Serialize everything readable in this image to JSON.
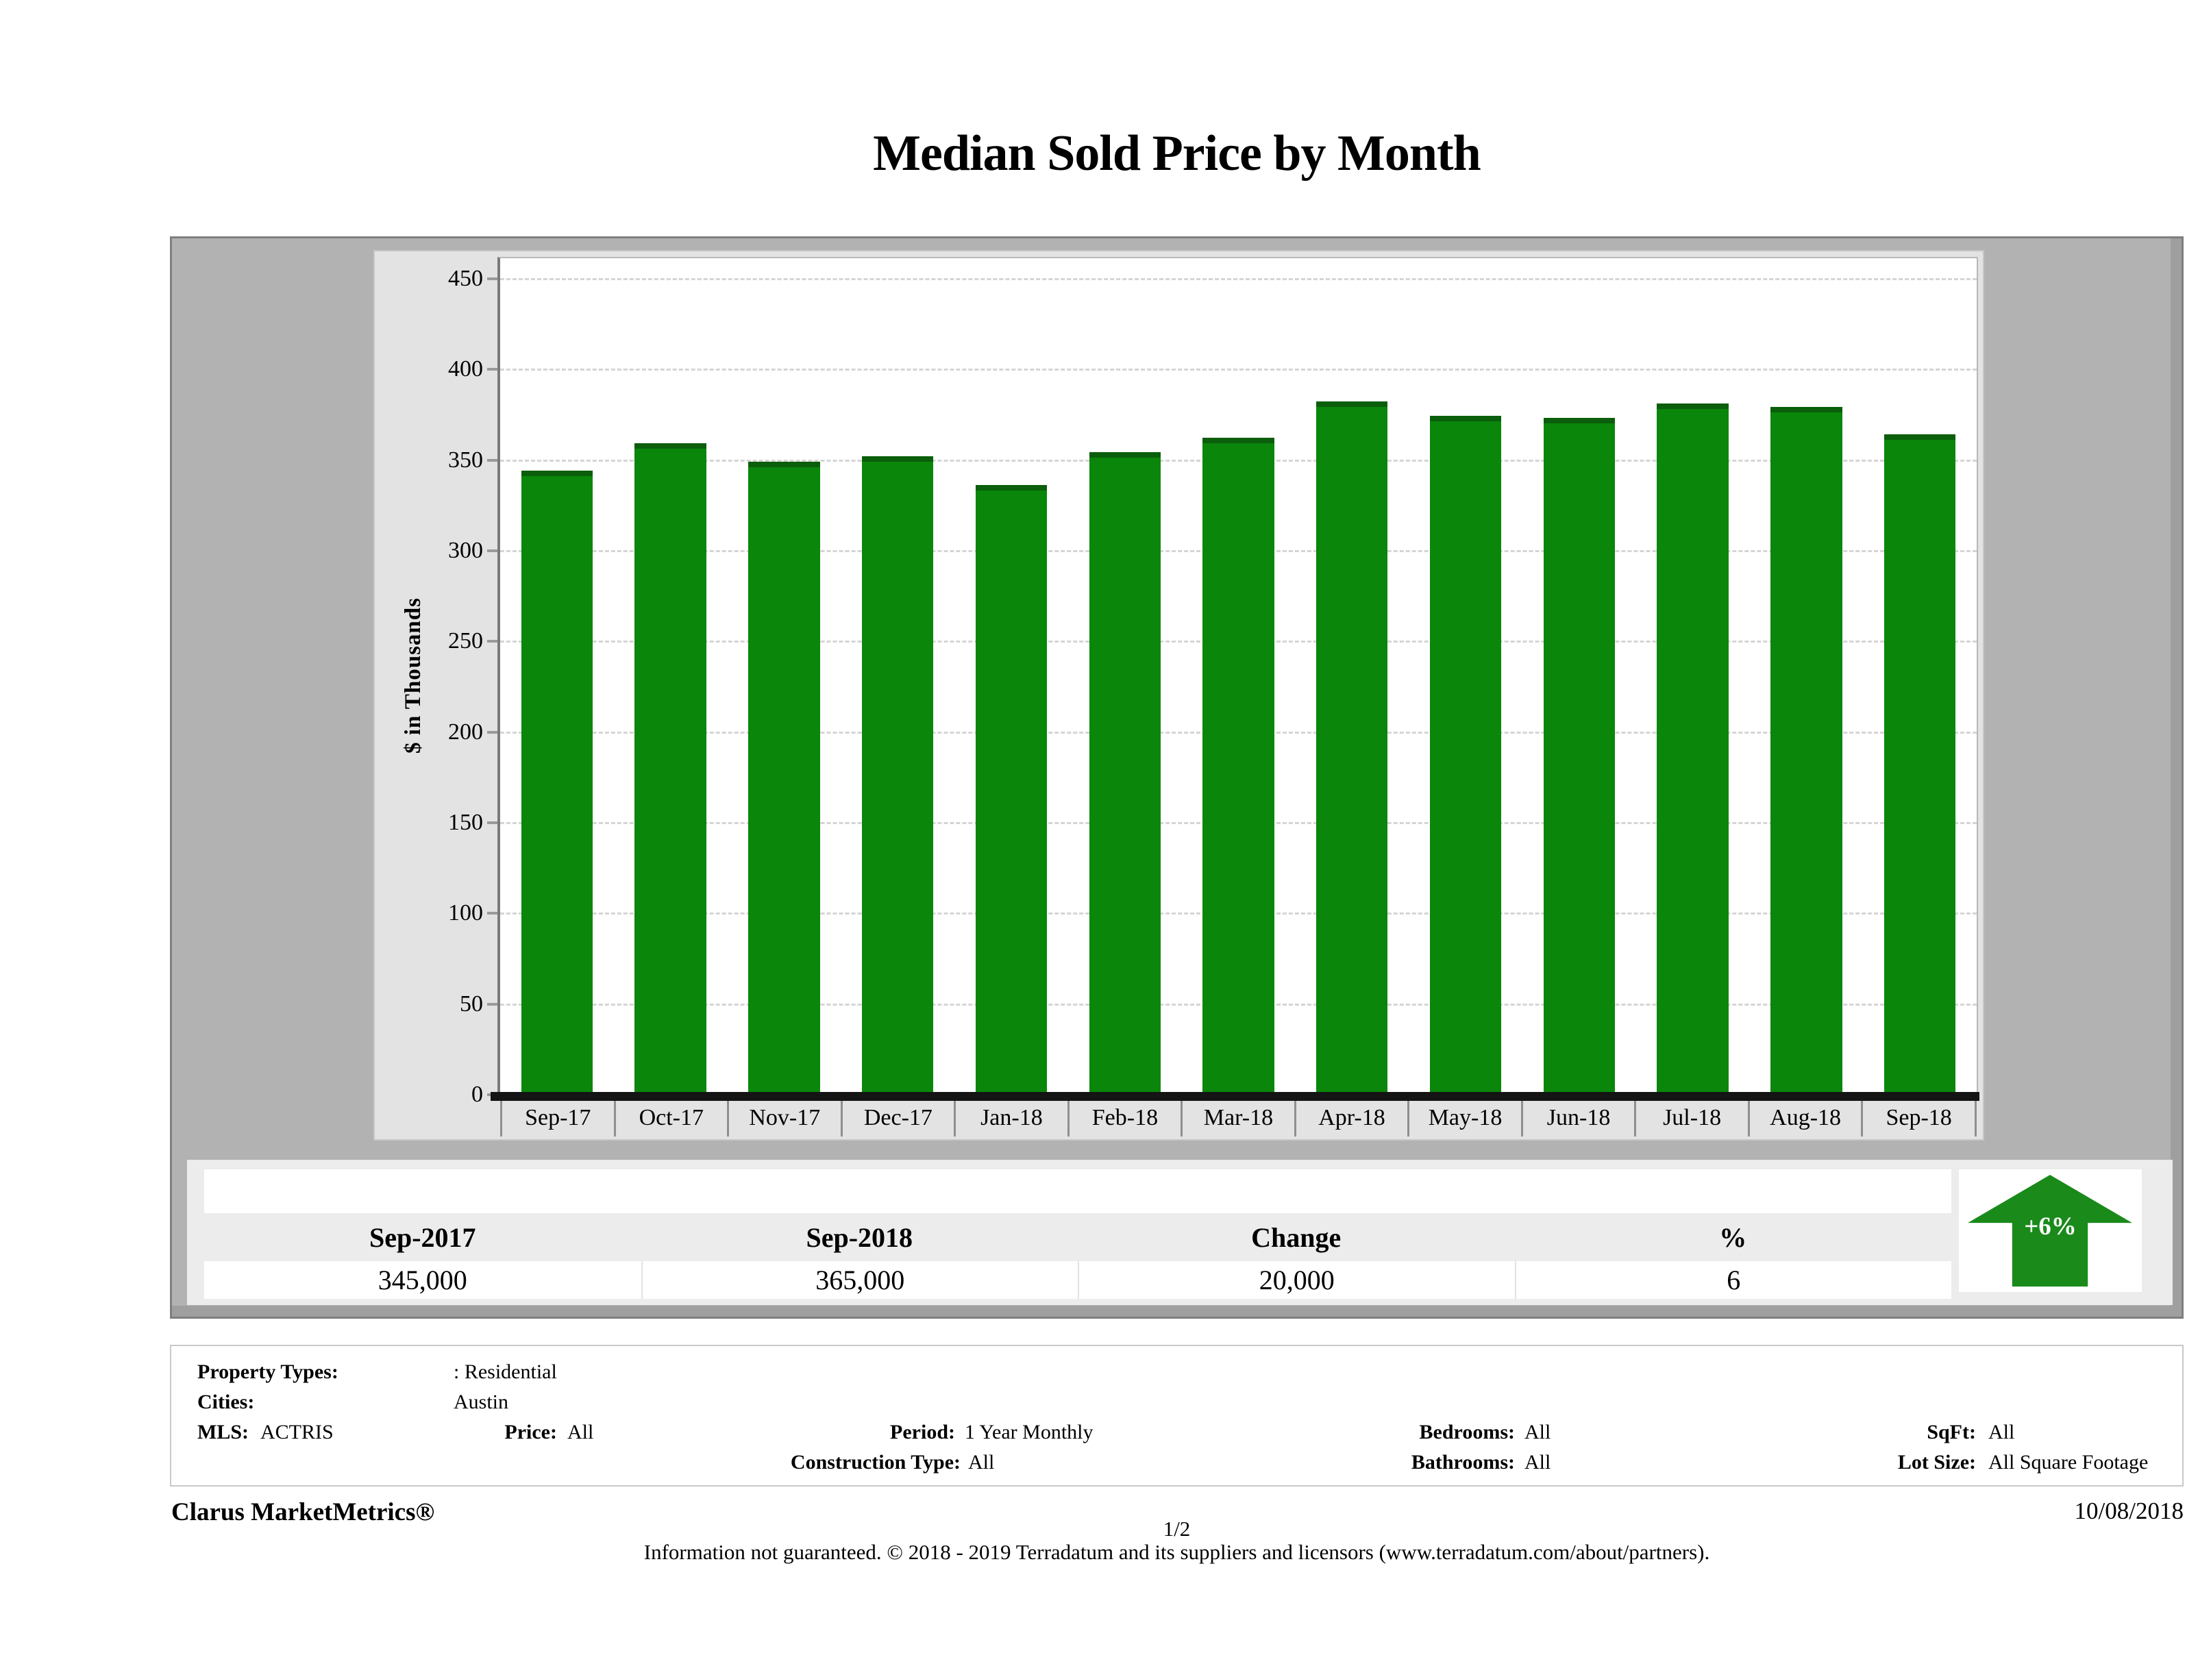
{
  "title": "Median Sold Price by Month",
  "chart_data": {
    "type": "bar",
    "title": "Median Sold Price by Month",
    "categories": [
      "Sep-17",
      "Oct-17",
      "Nov-17",
      "Dec-17",
      "Jan-18",
      "Feb-18",
      "Mar-18",
      "Apr-18",
      "May-18",
      "Jun-18",
      "Jul-18",
      "Aug-18",
      "Sep-18"
    ],
    "values": [
      345,
      360,
      350,
      353,
      337,
      355,
      363,
      383,
      375,
      374,
      382,
      380,
      365
    ],
    "unit": "$ thousands",
    "xlabel": "",
    "ylabel": "$ in Thousands",
    "ylim": [
      0,
      450
    ],
    "yticks": [
      0,
      50,
      100,
      150,
      200,
      250,
      300,
      350,
      400,
      450
    ],
    "y_render_max": 462,
    "grid": "horizontal-dashed",
    "legend_position": "none",
    "bar_color": "#0a860a",
    "bar_cap_color": "#0b5e0b"
  },
  "summary_table": {
    "columns": [
      "Sep-2017",
      "Sep-2018",
      "Change",
      "%"
    ],
    "values": [
      "345,000",
      "365,000",
      "20,000",
      "6"
    ]
  },
  "trend_badge": {
    "label": "+6%",
    "direction": "up",
    "color": "#1a8a1a"
  },
  "filters": {
    "property_types_label": "Property Types:",
    "property_types_value": ": Residential",
    "cities_label": "Cities:",
    "cities_value": "Austin",
    "mls_label": "MLS:",
    "mls_value": "ACTRIS",
    "price_label": "Price:",
    "price_value": "All",
    "period_label": "Period:",
    "period_value": "1 Year Monthly",
    "construction_label": "Construction Type:",
    "construction_value": "All",
    "bedrooms_label": "Bedrooms:",
    "bedrooms_value": "All",
    "bathrooms_label": "Bathrooms:",
    "bathrooms_value": "All",
    "sqft_label": "SqFt:",
    "sqft_value": "All",
    "lot_size_label": "Lot Size:",
    "lot_size_value": "All Square Footage"
  },
  "footer": {
    "brand": "Clarus MarketMetrics®",
    "page": "1/2",
    "date": "10/08/2018",
    "disclaimer": "Information not guaranteed. © 2018 - 2019 Terradatum and its suppliers and licensors (www.terradatum.com/about/partners)."
  }
}
